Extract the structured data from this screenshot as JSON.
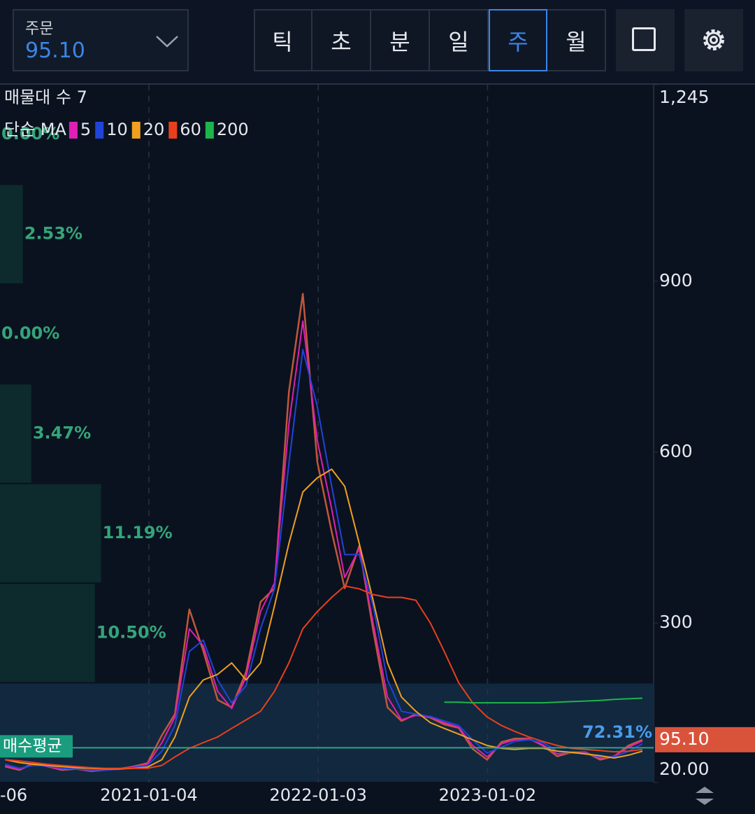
{
  "header": {
    "order_label": "주문",
    "price": "95.10",
    "tabs": [
      "틱",
      "초",
      "분",
      "일",
      "주",
      "월"
    ],
    "selected_tab": 4
  },
  "chart_data": {
    "type": "line",
    "title": "매물대 수 7",
    "legend_title": "단순 MA",
    "x": [
      "2020-03-01",
      "2020-04-01",
      "2020-05-01",
      "2020-06-01",
      "2020-07-01",
      "2020-08-01",
      "2020-09-01",
      "2020-10-01",
      "2020-11-01",
      "2020-12-01",
      "2021-01-01",
      "2021-02-01",
      "2021-03-01",
      "2021-04-01",
      "2021-05-01",
      "2021-06-01",
      "2021-07-01",
      "2021-08-01",
      "2021-09-01",
      "2021-10-01",
      "2021-11-01",
      "2021-12-01",
      "2022-01-01",
      "2022-02-01",
      "2022-03-01",
      "2022-04-01",
      "2022-05-01",
      "2022-06-01",
      "2022-07-01",
      "2022-08-01",
      "2022-09-01",
      "2022-10-01",
      "2022-11-01",
      "2022-12-01",
      "2023-01-01",
      "2023-02-01",
      "2023-03-01",
      "2023-04-01",
      "2023-05-01",
      "2023-06-01",
      "2023-07-01",
      "2023-08-01",
      "2023-09-01",
      "2023-10-01",
      "2023-11-01",
      "2023-12-01"
    ],
    "values": [
      48,
      42,
      54,
      48,
      42,
      44,
      40,
      42,
      44,
      48,
      54,
      103,
      140,
      324,
      251,
      165,
      152,
      214,
      337,
      361,
      706,
      878,
      583,
      460,
      361,
      435,
      288,
      152,
      128,
      140,
      134,
      122,
      116,
      79,
      60,
      91,
      97,
      97,
      85,
      66,
      73,
      73,
      60,
      66,
      85,
      95
    ],
    "color": "#c0583a",
    "series": [
      {
        "name": "5",
        "color": "#e01fb5",
        "values": [
          50,
          43,
          52,
          48,
          43,
          44,
          41,
          42,
          44,
          47,
          52,
          90,
          135,
          290,
          260,
          180,
          150,
          205,
          320,
          370,
          650,
          830,
          620,
          500,
          380,
          430,
          300,
          170,
          130,
          138,
          135,
          125,
          117,
          85,
          65,
          88,
          95,
          96,
          86,
          70,
          72,
          72,
          63,
          66,
          82,
          93
        ]
      },
      {
        "name": "10",
        "color": "#1f45d8",
        "values": [
          52,
          45,
          50,
          49,
          45,
          44,
          42,
          42,
          43,
          46,
          50,
          75,
          120,
          250,
          270,
          200,
          160,
          190,
          290,
          360,
          580,
          780,
          680,
          540,
          420,
          420,
          330,
          200,
          145,
          140,
          136,
          128,
          120,
          95,
          72,
          82,
          92,
          95,
          90,
          75,
          72,
          71,
          65,
          65,
          75,
          88
        ]
      },
      {
        "name": "20",
        "color": "#f0a020",
        "values": [
          60,
          55,
          52,
          50,
          48,
          46,
          45,
          44,
          44,
          45,
          47,
          60,
          100,
          170,
          200,
          210,
          230,
          200,
          230,
          330,
          440,
          530,
          555,
          570,
          540,
          440,
          340,
          230,
          170,
          145,
          125,
          115,
          105,
          95,
          85,
          80,
          78,
          80,
          80,
          75,
          73,
          70,
          67,
          63,
          68,
          75
        ]
      },
      {
        "name": "60",
        "color": "#e8401c",
        "values": [
          60,
          58,
          55,
          52,
          50,
          48,
          46,
          45,
          45,
          45,
          45,
          50,
          65,
          80,
          90,
          100,
          115,
          130,
          145,
          180,
          230,
          290,
          320,
          345,
          365,
          360,
          350,
          345,
          345,
          340,
          300,
          250,
          195,
          160,
          135,
          120,
          110,
          100,
          92,
          85,
          80,
          78,
          76,
          74,
          75,
          78
        ]
      },
      {
        "name": "200",
        "color": "#1db54a",
        "values": [
          null,
          null,
          null,
          null,
          null,
          null,
          null,
          null,
          null,
          null,
          null,
          null,
          null,
          null,
          null,
          null,
          null,
          null,
          null,
          null,
          null,
          null,
          null,
          null,
          null,
          null,
          null,
          null,
          null,
          null,
          null,
          161,
          161,
          160,
          160,
          160,
          160,
          160,
          160,
          161,
          162,
          163,
          164,
          166,
          167,
          168
        ]
      }
    ],
    "xlim": [
      "2020-02-19",
      "2023-12-25"
    ],
    "xticks": [
      {
        "value": "2020-01-06",
        "label": "-06"
      },
      "2021-01-04",
      "2022-01-03",
      "2023-01-02"
    ],
    "ylim": [
      20,
      1245
    ],
    "yticks": [
      {
        "value": 20,
        "label": "20.00"
      },
      300,
      600,
      900,
      {
        "value": 1245,
        "label": "1,245"
      }
    ],
    "volume_profile": {
      "bins": [
        20,
        195,
        370,
        545,
        720,
        895,
        1070,
        1245
      ],
      "values": [
        72.31,
        10.5,
        11.19,
        3.47,
        0,
        2.53,
        0
      ],
      "value_labels": [
        "72.31%",
        "10.50%",
        "11.19%",
        "3.47%",
        "0.00%",
        "2.53%",
        "0.00%"
      ]
    },
    "avg_buy": {
      "label": "매수평균",
      "value": 81
    },
    "last_price": {
      "value": 95.1,
      "label": "95.10"
    }
  }
}
